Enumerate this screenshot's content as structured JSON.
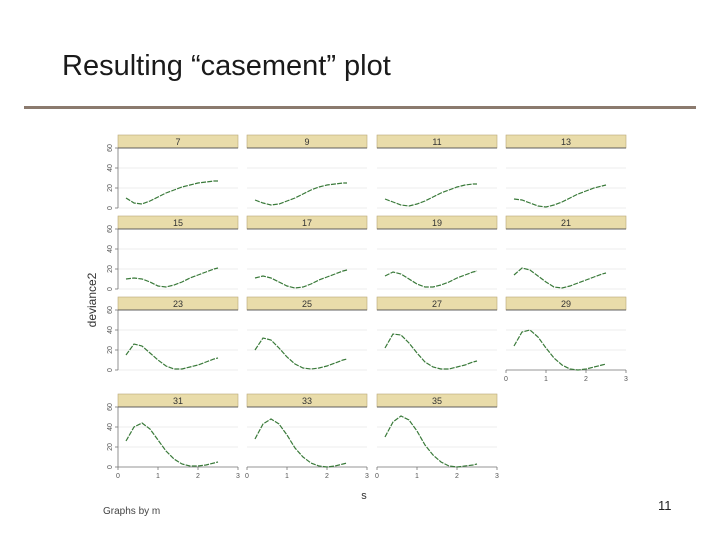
{
  "slide": {
    "title": "Resulting “casement” plot",
    "page_number": "11"
  },
  "chart_data": {
    "type": "line",
    "ylabel": "deviance2",
    "xlabel": "s",
    "by_note": "Graphs by m",
    "xlim": [
      0,
      3
    ],
    "ylim": [
      0,
      60
    ],
    "xticks": [
      0,
      1,
      2,
      3
    ],
    "yticks": [
      0,
      20,
      40,
      60
    ],
    "grid": true,
    "colors": {
      "strip": "#e9dcaa",
      "line": "#3a7a3a",
      "grid": "#e6e6e6",
      "axis": "#777777"
    },
    "panels": [
      {
        "label": "7",
        "x": [
          0.2,
          0.4,
          0.6,
          0.8,
          1.0,
          1.2,
          1.4,
          1.6,
          1.8,
          2.0,
          2.2,
          2.4,
          2.5
        ],
        "y": [
          10,
          5,
          4,
          7,
          11,
          15,
          18,
          21,
          23,
          25,
          26,
          27,
          27
        ]
      },
      {
        "label": "9",
        "x": [
          0.2,
          0.4,
          0.6,
          0.8,
          1.0,
          1.2,
          1.4,
          1.6,
          1.8,
          2.0,
          2.2,
          2.4,
          2.5
        ],
        "y": [
          8,
          5,
          3,
          4,
          7,
          10,
          14,
          18,
          21,
          23,
          24,
          25,
          25
        ]
      },
      {
        "label": "11",
        "x": [
          0.2,
          0.4,
          0.6,
          0.8,
          1.0,
          1.2,
          1.4,
          1.6,
          1.8,
          2.0,
          2.2,
          2.4,
          2.5
        ],
        "y": [
          9,
          6,
          3,
          2,
          4,
          7,
          11,
          15,
          18,
          21,
          23,
          24,
          24
        ]
      },
      {
        "label": "13",
        "x": [
          0.2,
          0.4,
          0.6,
          0.8,
          1.0,
          1.2,
          1.4,
          1.6,
          1.8,
          2.0,
          2.2,
          2.4,
          2.5
        ],
        "y": [
          9,
          8,
          5,
          2,
          1,
          3,
          6,
          10,
          14,
          17,
          20,
          22,
          23
        ]
      },
      {
        "label": "15",
        "x": [
          0.2,
          0.4,
          0.6,
          0.8,
          1.0,
          1.2,
          1.4,
          1.6,
          1.8,
          2.0,
          2.2,
          2.4,
          2.5
        ],
        "y": [
          10,
          11,
          10,
          7,
          3,
          2,
          4,
          7,
          11,
          14,
          17,
          20,
          21
        ]
      },
      {
        "label": "17",
        "x": [
          0.2,
          0.4,
          0.6,
          0.8,
          1.0,
          1.2,
          1.4,
          1.6,
          1.8,
          2.0,
          2.2,
          2.4,
          2.5
        ],
        "y": [
          11,
          13,
          11,
          7,
          3,
          1,
          2,
          5,
          9,
          12,
          15,
          18,
          19
        ]
      },
      {
        "label": "19",
        "x": [
          0.2,
          0.4,
          0.6,
          0.8,
          1.0,
          1.2,
          1.4,
          1.6,
          1.8,
          2.0,
          2.2,
          2.4,
          2.5
        ],
        "y": [
          13,
          17,
          15,
          10,
          5,
          2,
          2,
          4,
          7,
          11,
          14,
          17,
          18
        ]
      },
      {
        "label": "21",
        "x": [
          0.2,
          0.4,
          0.6,
          0.8,
          1.0,
          1.2,
          1.4,
          1.6,
          1.8,
          2.0,
          2.2,
          2.4,
          2.5
        ],
        "y": [
          14,
          21,
          19,
          13,
          7,
          2,
          1,
          3,
          6,
          9,
          12,
          15,
          16
        ]
      },
      {
        "label": "23",
        "x": [
          0.2,
          0.4,
          0.6,
          0.8,
          1.0,
          1.2,
          1.4,
          1.6,
          1.8,
          2.0,
          2.2,
          2.4,
          2.5
        ],
        "y": [
          15,
          26,
          24,
          17,
          10,
          4,
          1,
          1,
          3,
          5,
          8,
          11,
          12
        ]
      },
      {
        "label": "25",
        "x": [
          0.2,
          0.4,
          0.6,
          0.8,
          1.0,
          1.2,
          1.4,
          1.6,
          1.8,
          2.0,
          2.2,
          2.4,
          2.5
        ],
        "y": [
          20,
          32,
          30,
          22,
          13,
          6,
          2,
          1,
          2,
          4,
          7,
          10,
          11
        ]
      },
      {
        "label": "27",
        "x": [
          0.2,
          0.4,
          0.6,
          0.8,
          1.0,
          1.2,
          1.4,
          1.6,
          1.8,
          2.0,
          2.2,
          2.4,
          2.5
        ],
        "y": [
          22,
          36,
          35,
          27,
          17,
          8,
          3,
          1,
          1,
          3,
          5,
          8,
          9
        ]
      },
      {
        "label": "29",
        "x": [
          0.2,
          0.4,
          0.6,
          0.8,
          1.0,
          1.2,
          1.4,
          1.6,
          1.8,
          2.0,
          2.2,
          2.4,
          2.5
        ],
        "y": [
          24,
          38,
          40,
          33,
          22,
          12,
          5,
          1,
          0,
          1,
          3,
          5,
          6
        ]
      },
      {
        "label": "31",
        "x": [
          0.2,
          0.4,
          0.6,
          0.8,
          1.0,
          1.2,
          1.4,
          1.6,
          1.8,
          2.0,
          2.2,
          2.4,
          2.5
        ],
        "y": [
          26,
          40,
          44,
          38,
          27,
          16,
          8,
          3,
          1,
          1,
          2,
          4,
          5
        ]
      },
      {
        "label": "33",
        "x": [
          0.2,
          0.4,
          0.6,
          0.8,
          1.0,
          1.2,
          1.4,
          1.6,
          1.8,
          2.0,
          2.2,
          2.4,
          2.5
        ],
        "y": [
          28,
          43,
          48,
          43,
          32,
          19,
          10,
          4,
          1,
          0,
          1,
          3,
          4
        ]
      },
      {
        "label": "35",
        "x": [
          0.2,
          0.4,
          0.6,
          0.8,
          1.0,
          1.2,
          1.4,
          1.6,
          1.8,
          2.0,
          2.2,
          2.4,
          2.5
        ],
        "y": [
          30,
          45,
          51,
          47,
          36,
          22,
          12,
          5,
          1,
          0,
          1,
          2,
          3
        ]
      }
    ]
  }
}
